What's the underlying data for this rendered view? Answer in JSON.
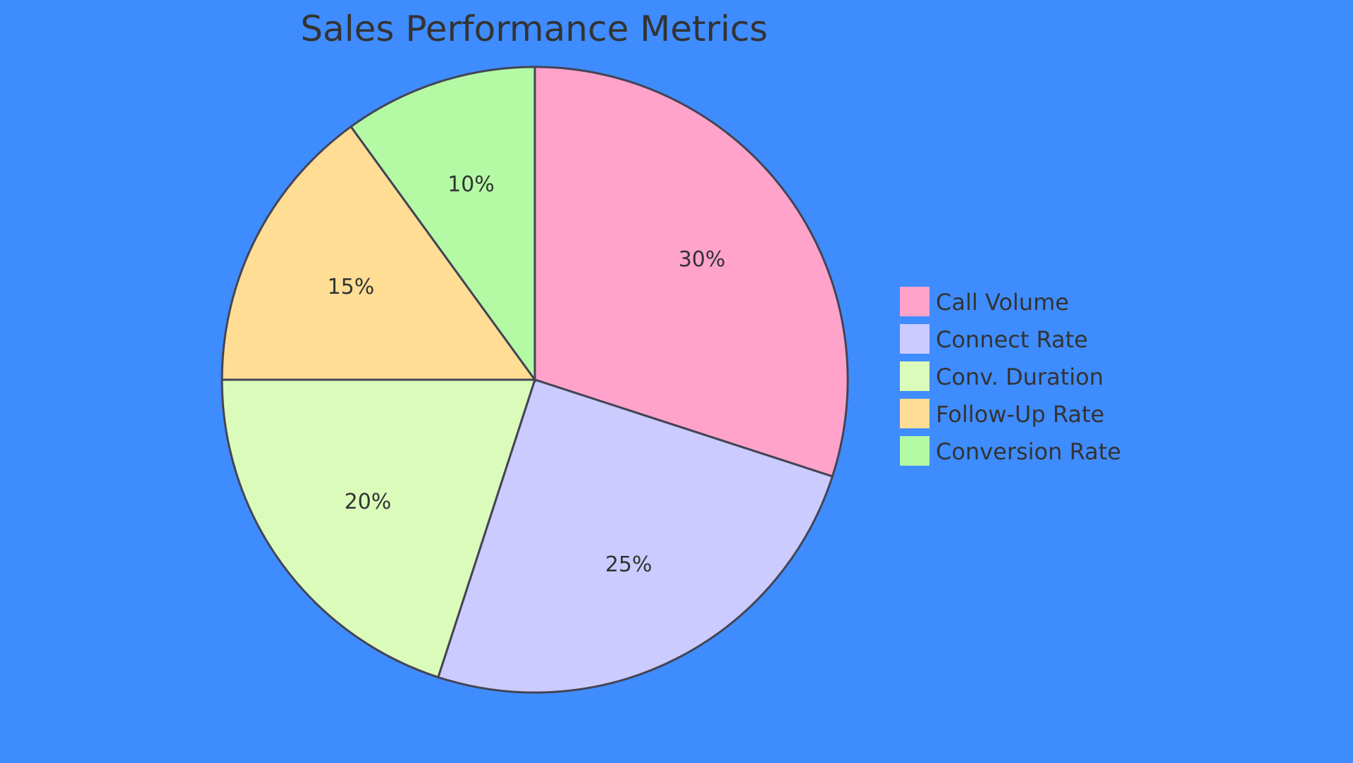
{
  "chart_data": {
    "type": "pie",
    "title": "Sales Performance Metrics",
    "categories": [
      "Call Volume",
      "Connect Rate",
      "Conv. Duration",
      "Follow-Up Rate",
      "Conversion Rate"
    ],
    "values": [
      30,
      25,
      20,
      15,
      10
    ],
    "labels": [
      "30%",
      "25%",
      "20%",
      "15%",
      "10%"
    ],
    "colors": [
      "#ffa3cb",
      "#cbcbff",
      "#dbfbbb",
      "#ffdd94",
      "#b4f9a4"
    ],
    "legend_position": "right",
    "background": "#3f8cff"
  }
}
